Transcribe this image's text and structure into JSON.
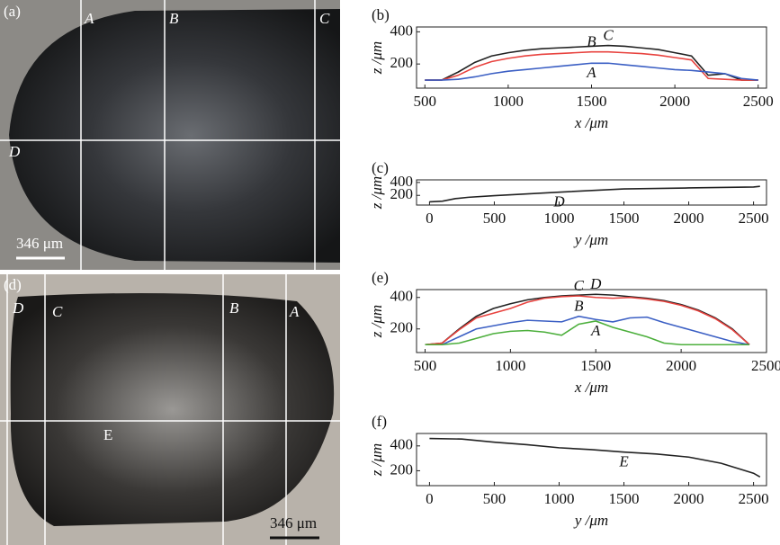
{
  "images": [
    {
      "panel": "(a)",
      "labels": [
        "A",
        "B",
        "C",
        "D"
      ],
      "scale_bar": "346 μm"
    },
    {
      "panel": "(d)",
      "labels": [
        "D",
        "C",
        "B",
        "A",
        "E"
      ],
      "scale_bar": "346 μm"
    }
  ],
  "chart_data": [
    {
      "type": "line",
      "panel": "(b)",
      "xlabel": "x /μm",
      "ylabel": "z /μm",
      "xlim": [
        450,
        2550
      ],
      "ylim": [
        50,
        430
      ],
      "xticks": [
        500,
        1000,
        1500,
        2000,
        2500
      ],
      "yticks": [
        200,
        400
      ],
      "x": [
        500,
        600,
        700,
        800,
        900,
        1000,
        1100,
        1200,
        1300,
        1400,
        1500,
        1600,
        1700,
        1800,
        1900,
        2000,
        2100,
        2200,
        2300,
        2400,
        2500
      ],
      "series": [
        {
          "name": "C",
          "color": "#222222",
          "values": [
            100,
            100,
            150,
            210,
            250,
            270,
            285,
            295,
            300,
            305,
            310,
            315,
            310,
            300,
            290,
            270,
            250,
            130,
            140,
            100,
            100
          ]
        },
        {
          "name": "B",
          "color": "#e8433f",
          "values": [
            100,
            100,
            130,
            180,
            215,
            235,
            250,
            260,
            265,
            270,
            275,
            275,
            270,
            265,
            255,
            240,
            225,
            110,
            105,
            100,
            100
          ]
        },
        {
          "name": "A",
          "color": "#3b5fc4",
          "values": [
            100,
            100,
            105,
            120,
            140,
            155,
            165,
            175,
            185,
            195,
            205,
            205,
            195,
            185,
            175,
            165,
            160,
            150,
            140,
            110,
            100
          ]
        }
      ]
    },
    {
      "type": "line",
      "panel": "(c)",
      "xlabel": "y /μm",
      "ylabel": "z /μm",
      "xlim": [
        -100,
        2600
      ],
      "ylim": [
        50,
        440
      ],
      "xticks": [
        0,
        500,
        1000,
        1500,
        2000,
        2500
      ],
      "yticks": [
        200,
        400
      ],
      "x": [
        0,
        100,
        200,
        300,
        500,
        1000,
        1500,
        2000,
        2500,
        2550
      ],
      "series": [
        {
          "name": "D",
          "color": "#222222",
          "values": [
            100,
            110,
            150,
            170,
            195,
            250,
            300,
            315,
            330,
            340
          ]
        }
      ]
    },
    {
      "type": "line",
      "panel": "(e)",
      "xlabel": "x /μm",
      "ylabel": "z /μm",
      "xlim": [
        450,
        2500
      ],
      "ylim": [
        50,
        450
      ],
      "xticks": [
        500,
        1000,
        1500,
        2000,
        2500
      ],
      "yticks": [
        200,
        400
      ],
      "x": [
        500,
        600,
        700,
        800,
        900,
        1000,
        1100,
        1200,
        1300,
        1400,
        1500,
        1600,
        1700,
        1800,
        1900,
        2000,
        2100,
        2200,
        2300,
        2400
      ],
      "series": [
        {
          "name": "D",
          "color": "#222222",
          "values": [
            100,
            110,
            200,
            280,
            330,
            360,
            385,
            400,
            410,
            415,
            420,
            415,
            405,
            395,
            380,
            355,
            320,
            270,
            200,
            100
          ]
        },
        {
          "name": "C",
          "color": "#e8433f",
          "values": [
            100,
            110,
            195,
            270,
            300,
            330,
            370,
            395,
            405,
            410,
            400,
            395,
            400,
            390,
            375,
            350,
            315,
            265,
            195,
            100
          ]
        },
        {
          "name": "B",
          "color": "#3b5fc4",
          "values": [
            100,
            100,
            150,
            200,
            220,
            240,
            255,
            250,
            245,
            280,
            260,
            245,
            270,
            275,
            240,
            210,
            180,
            150,
            120,
            100
          ]
        },
        {
          "name": "A",
          "color": "#4caf3c",
          "values": [
            100,
            100,
            110,
            140,
            170,
            185,
            190,
            180,
            160,
            230,
            250,
            210,
            180,
            150,
            110,
            100,
            100,
            100,
            100,
            100
          ]
        }
      ]
    },
    {
      "type": "line",
      "panel": "(f)",
      "xlabel": "y /μm",
      "ylabel": "z /μm",
      "xlim": [
        -100,
        2600
      ],
      "ylim": [
        80,
        500
      ],
      "xticks": [
        0,
        500,
        1000,
        1500,
        2000,
        2500
      ],
      "yticks": [
        200,
        400
      ],
      "x": [
        0,
        250,
        500,
        750,
        1000,
        1250,
        1500,
        1750,
        2000,
        2250,
        2500,
        2550
      ],
      "series": [
        {
          "name": "E",
          "color": "#222222",
          "values": [
            460,
            455,
            430,
            410,
            385,
            370,
            350,
            335,
            310,
            260,
            180,
            150
          ]
        }
      ]
    }
  ]
}
